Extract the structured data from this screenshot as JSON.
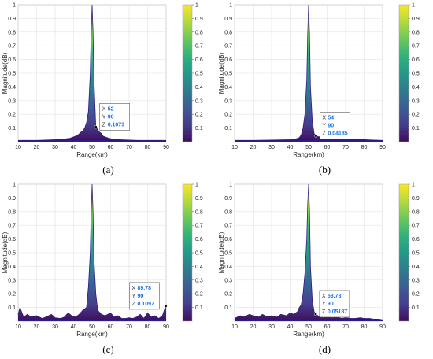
{
  "colors": {
    "colormap": [
      "#3e0d5c",
      "#463e8c",
      "#3c5d93",
      "#2f7c8d",
      "#23998a",
      "#30b27a",
      "#6ac95a",
      "#b3d93e",
      "#fae626"
    ],
    "base": "#2f1b8a",
    "datatip_border": "#555555",
    "datatip_value": "#1a73e8"
  },
  "chart_data": [
    {
      "type": "area",
      "caption": "(a)",
      "xlabel": "Range(km)",
      "ylabel": "Magnitude(dB)",
      "xlim": [
        10,
        90
      ],
      "ylim": [
        0,
        1
      ],
      "xticks": [
        "10",
        "20",
        "30",
        "40",
        "50",
        "60",
        "70",
        "80",
        "90"
      ],
      "yticks": [
        "0.1",
        "0.2",
        "0.3",
        "0.4",
        "0.5",
        "0.6",
        "0.7",
        "0.8",
        "0.9",
        "1"
      ],
      "colorbar_ticks": [
        "0.1",
        "0.2",
        "0.3",
        "0.4",
        "0.5",
        "0.6",
        "0.7",
        "0.8",
        "0.9",
        "1"
      ],
      "grid": true,
      "x": [
        10,
        20,
        25,
        30,
        35,
        38,
        40,
        42,
        44,
        45,
        46,
        47,
        48,
        49,
        49.5,
        50,
        50.5,
        51,
        52,
        53,
        54,
        55,
        56,
        58,
        60,
        62,
        65,
        70,
        75,
        80,
        85,
        90
      ],
      "y": [
        0.01,
        0.01,
        0.012,
        0.015,
        0.02,
        0.025,
        0.035,
        0.045,
        0.07,
        0.08,
        0.1,
        0.14,
        0.22,
        0.5,
        0.8,
        1.0,
        0.8,
        0.45,
        0.1073,
        0.09,
        0.07,
        0.06,
        0.04,
        0.03,
        0.022,
        0.018,
        0.015,
        0.012,
        0.01,
        0.01,
        0.01,
        0.01
      ],
      "datatip": {
        "x": 52,
        "y": 0.1073,
        "X": "52",
        "Y": "90",
        "Z": "0.1073"
      }
    },
    {
      "type": "area",
      "caption": "(b)",
      "xlabel": "Range(km)",
      "ylabel": "Magnitude(dB)",
      "xlim": [
        10,
        90
      ],
      "ylim": [
        0,
        1
      ],
      "xticks": [
        "10",
        "20",
        "30",
        "40",
        "50",
        "60",
        "70",
        "80",
        "90"
      ],
      "yticks": [
        "0.1",
        "0.2",
        "0.3",
        "0.4",
        "0.5",
        "0.6",
        "0.7",
        "0.8",
        "0.9",
        "1"
      ],
      "colorbar_ticks": [
        "0.1",
        "0.2",
        "0.3",
        "0.4",
        "0.5",
        "0.6",
        "0.7",
        "0.8",
        "0.9",
        "1"
      ],
      "grid": true,
      "x": [
        10,
        20,
        30,
        40,
        43,
        45,
        46,
        47,
        48,
        49,
        49.5,
        50,
        50.5,
        51,
        52,
        53,
        54,
        56,
        58,
        60,
        65,
        70,
        75,
        80,
        85,
        90
      ],
      "y": [
        0.01,
        0.01,
        0.012,
        0.015,
        0.02,
        0.03,
        0.05,
        0.1,
        0.2,
        0.45,
        0.78,
        1.0,
        0.78,
        0.4,
        0.15,
        0.06,
        0.04185,
        0.035,
        0.03,
        0.025,
        0.02,
        0.015,
        0.015,
        0.015,
        0.012,
        0.01
      ],
      "datatip": {
        "x": 54,
        "y": 0.04185,
        "X": "54",
        "Y": "90",
        "Z": "0.04185"
      }
    },
    {
      "type": "area",
      "caption": "(c)",
      "xlabel": "Range(km)",
      "ylabel": "Magnitude(dB)",
      "xlim": [
        10,
        90
      ],
      "ylim": [
        0,
        1
      ],
      "xticks": [
        "10",
        "20",
        "30",
        "40",
        "50",
        "60",
        "70",
        "80",
        "90"
      ],
      "yticks": [
        "0.1",
        "0.2",
        "0.3",
        "0.4",
        "0.5",
        "0.6",
        "0.7",
        "0.8",
        "0.9",
        "1"
      ],
      "colorbar_ticks": [
        "0.1",
        "0.2",
        "0.3",
        "0.4",
        "0.5",
        "0.6",
        "0.7",
        "0.8",
        "0.9",
        "1"
      ],
      "grid": true,
      "x": [
        10,
        11,
        13,
        15,
        17,
        20,
        23,
        25,
        28,
        30,
        33,
        35,
        37,
        39,
        41,
        43,
        45,
        47,
        48,
        49,
        49.5,
        50,
        50.5,
        51,
        52,
        53,
        55,
        57,
        60,
        62,
        64,
        66,
        68,
        70,
        72,
        74,
        76,
        78,
        80,
        82,
        84,
        86,
        88,
        89.78,
        90
      ],
      "y": [
        0.05,
        0.1,
        0.03,
        0.05,
        0.03,
        0.04,
        0.02,
        0.03,
        0.05,
        0.025,
        0.02,
        0.03,
        0.06,
        0.04,
        0.03,
        0.05,
        0.08,
        0.1,
        0.25,
        0.5,
        0.8,
        1.0,
        0.8,
        0.45,
        0.2,
        0.08,
        0.05,
        0.04,
        0.06,
        0.03,
        0.04,
        0.02,
        0.02,
        0.025,
        0.02,
        0.03,
        0.05,
        0.02,
        0.06,
        0.03,
        0.04,
        0.02,
        0.04,
        0.1097,
        0.1
      ],
      "datatip": {
        "x": 89.78,
        "y": 0.1097,
        "X": "89.78",
        "Y": "90",
        "Z": "0.1097"
      }
    },
    {
      "type": "area",
      "caption": "(d)",
      "xlabel": "Range(km)",
      "ylabel": "Magnitude(dB)",
      "xlim": [
        10,
        90
      ],
      "ylim": [
        0,
        1
      ],
      "xticks": [
        "10",
        "20",
        "30",
        "40",
        "50",
        "60",
        "70",
        "80",
        "90"
      ],
      "yticks": [
        "0.1",
        "0.2",
        "0.3",
        "0.4",
        "0.5",
        "0.6",
        "0.7",
        "0.8",
        "0.9",
        "1"
      ],
      "colorbar_ticks": [
        "0.1",
        "0.2",
        "0.3",
        "0.4",
        "0.5",
        "0.6",
        "0.7",
        "0.8",
        "0.9",
        "1"
      ],
      "grid": true,
      "x": [
        10,
        13,
        15,
        18,
        20,
        23,
        25,
        28,
        30,
        33,
        35,
        38,
        40,
        42,
        44,
        45,
        46,
        47,
        48,
        49,
        49.5,
        50,
        50.5,
        51,
        52,
        53,
        53.78,
        55,
        57,
        60,
        63,
        65,
        68,
        70,
        73,
        75,
        78,
        80,
        83,
        85,
        88,
        90
      ],
      "y": [
        0.02,
        0.04,
        0.03,
        0.05,
        0.04,
        0.03,
        0.05,
        0.03,
        0.04,
        0.03,
        0.05,
        0.04,
        0.06,
        0.05,
        0.07,
        0.1,
        0.12,
        0.2,
        0.35,
        0.6,
        0.85,
        1.0,
        0.8,
        0.4,
        0.15,
        0.07,
        0.05187,
        0.04,
        0.03,
        0.03,
        0.025,
        0.03,
        0.02,
        0.025,
        0.02,
        0.02,
        0.025,
        0.02,
        0.02,
        0.015,
        0.015,
        0.01
      ],
      "datatip": {
        "x": 53.78,
        "y": 0.05187,
        "X": "53.78",
        "Y": "90",
        "Z": "0.05187"
      }
    }
  ]
}
